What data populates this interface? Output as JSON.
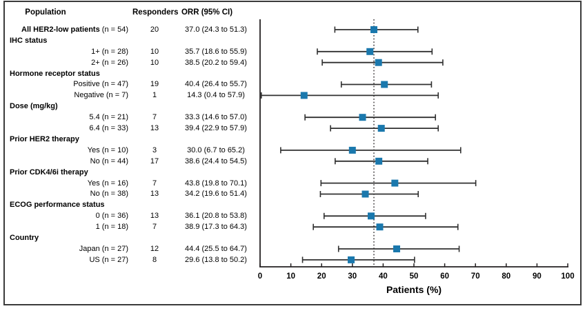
{
  "chart_data": {
    "type": "scatter",
    "variant": "forest-plot",
    "title": "",
    "xlabel": "Patients (%)",
    "xlim": [
      0,
      100
    ],
    "xticks": [
      0,
      10,
      20,
      30,
      40,
      50,
      60,
      70,
      80,
      90,
      100
    ],
    "reference_line_x": 37.0,
    "grid": false,
    "legend": "none",
    "columns": {
      "population": "Population",
      "responders": "Responders",
      "orr": "ORR (95% CI)"
    },
    "rows": [
      {
        "type": "data",
        "label_bold": "All HER2-low patients",
        "label": " (n = 54)",
        "responders": "20",
        "orr": "37.0 (24.3 to 51.3)",
        "est": 37.0,
        "lo": 24.3,
        "hi": 51.3
      },
      {
        "type": "group",
        "label_bold": "IHC status",
        "label": ""
      },
      {
        "type": "data",
        "label_bold": "",
        "label": "1+ (n = 28)",
        "responders": "10",
        "orr": "35.7 (18.6 to 55.9)",
        "est": 35.7,
        "lo": 18.6,
        "hi": 55.9
      },
      {
        "type": "data",
        "label_bold": "",
        "label": "2+ (n = 26)",
        "responders": "10",
        "orr": "38.5 (20.2 to 59.4)",
        "est": 38.5,
        "lo": 20.2,
        "hi": 59.4
      },
      {
        "type": "group",
        "label_bold": "Hormone receptor status",
        "label": ""
      },
      {
        "type": "data",
        "label_bold": "",
        "label": "Positive (n = 47)",
        "responders": "19",
        "orr": "40.4 (26.4 to 55.7)",
        "est": 40.4,
        "lo": 26.4,
        "hi": 55.7
      },
      {
        "type": "data",
        "label_bold": "",
        "label": "Negative (n = 7)",
        "responders": "1",
        "orr": "14.3 (0.4 to 57.9)",
        "est": 14.3,
        "lo": 0.4,
        "hi": 57.9
      },
      {
        "type": "group",
        "label_bold": "Dose (mg/kg)",
        "label": ""
      },
      {
        "type": "data",
        "label_bold": "",
        "label": "5.4 (n = 21)",
        "responders": "7",
        "orr": "33.3 (14.6 to 57.0)",
        "est": 33.3,
        "lo": 14.6,
        "hi": 57.0
      },
      {
        "type": "data",
        "label_bold": "",
        "label": "6.4 (n = 33)",
        "responders": "13",
        "orr": "39.4 (22.9 to 57.9)",
        "est": 39.4,
        "lo": 22.9,
        "hi": 57.9
      },
      {
        "type": "group",
        "label_bold": "Prior HER2 therapy",
        "label": ""
      },
      {
        "type": "data",
        "label_bold": "",
        "label": "Yes (n = 10)",
        "responders": "3",
        "orr": "30.0 (6.7 to 65.2)",
        "est": 30.0,
        "lo": 6.7,
        "hi": 65.2
      },
      {
        "type": "data",
        "label_bold": "",
        "label": "No (n = 44)",
        "responders": "17",
        "orr": "38.6 (24.4 to 54.5)",
        "est": 38.6,
        "lo": 24.4,
        "hi": 54.5
      },
      {
        "type": "group",
        "label_bold": "Prior CDK4/6i therapy",
        "label": ""
      },
      {
        "type": "data",
        "label_bold": "",
        "label": "Yes (n = 16)",
        "responders": "7",
        "orr": "43.8 (19.8 to 70.1)",
        "est": 43.8,
        "lo": 19.8,
        "hi": 70.1
      },
      {
        "type": "data",
        "label_bold": "",
        "label": "No (n = 38)",
        "responders": "13",
        "orr": "34.2 (19.6 to 51.4)",
        "est": 34.2,
        "lo": 19.6,
        "hi": 51.4
      },
      {
        "type": "group",
        "label_bold": "ECOG performance status",
        "label": ""
      },
      {
        "type": "data",
        "label_bold": "",
        "label": "0 (n = 36)",
        "responders": "13",
        "orr": "36.1 (20.8 to 53.8)",
        "est": 36.1,
        "lo": 20.8,
        "hi": 53.8
      },
      {
        "type": "data",
        "label_bold": "",
        "label": "1 (n = 18)",
        "responders": "7",
        "orr": "38.9 (17.3 to 64.3)",
        "est": 38.9,
        "lo": 17.3,
        "hi": 64.3
      },
      {
        "type": "group",
        "label_bold": "Country",
        "label": ""
      },
      {
        "type": "data",
        "label_bold": "",
        "label": "Japan (n = 27)",
        "responders": "12",
        "orr": "44.4 (25.5 to 64.7)",
        "est": 44.4,
        "lo": 25.5,
        "hi": 64.7
      },
      {
        "type": "data",
        "label_bold": "",
        "label": "US (n = 27)",
        "responders": "8",
        "orr": "29.6 (13.8 to 50.2)",
        "est": 29.6,
        "lo": 13.8,
        "hi": 50.2
      }
    ],
    "colors": {
      "marker": "#1a78ad",
      "ci_line": "#2f2f2f",
      "axis": "#231f20",
      "reference_line": "#231f20",
      "frame": "#3a3a3a",
      "text": "#000000"
    }
  }
}
